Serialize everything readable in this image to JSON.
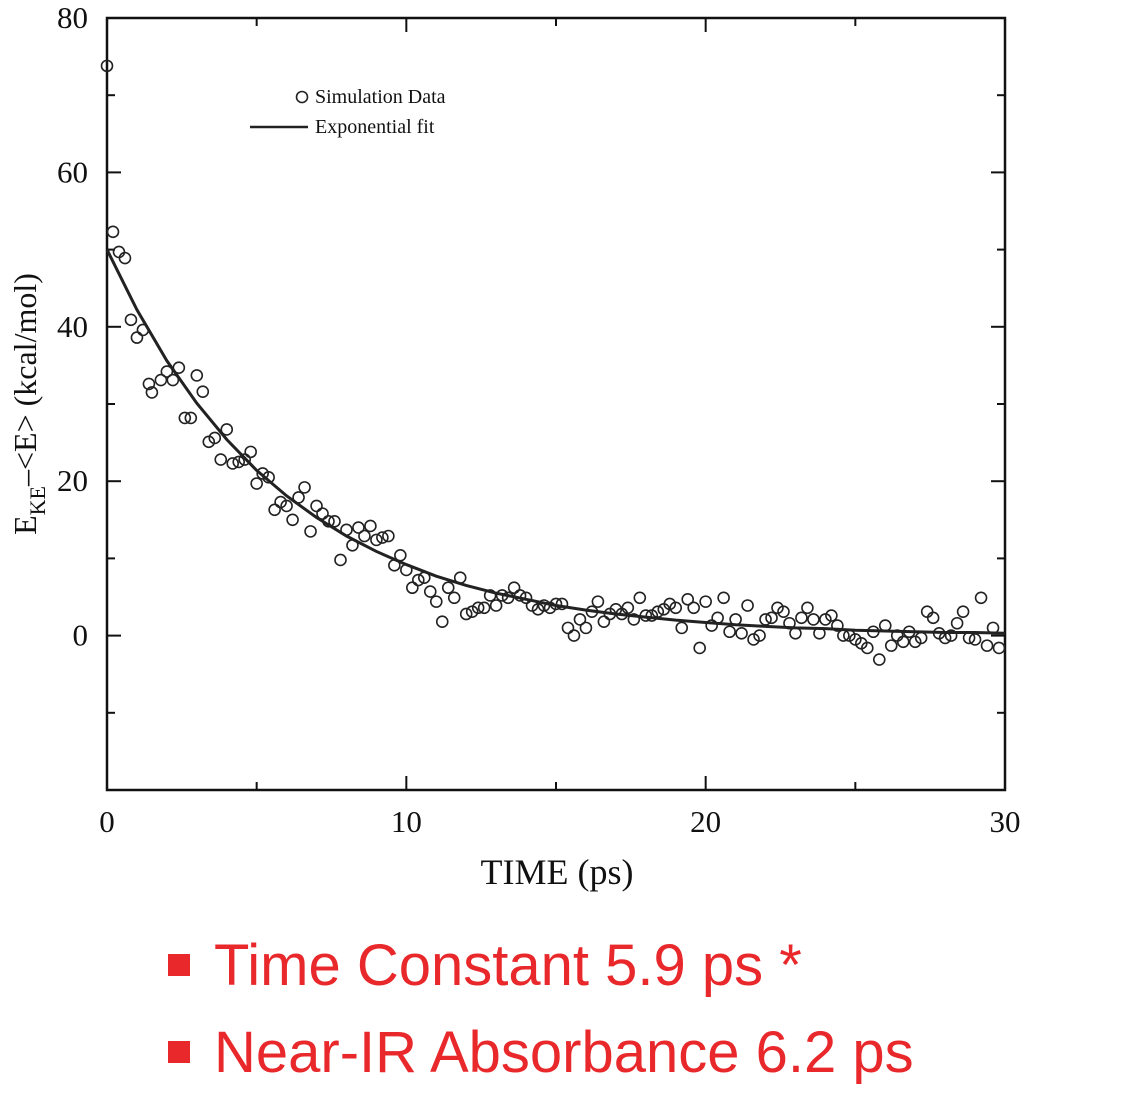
{
  "chart_data": {
    "type": "scatter",
    "xlabel": "TIME (ps)",
    "ylabel_parts": [
      "E",
      "KE",
      "–<E> (kcal/mol)"
    ],
    "xlim": [
      0,
      30
    ],
    "xticks": [
      0,
      10,
      20,
      30
    ],
    "xminor": [
      5,
      15,
      25
    ],
    "ylim": [
      -20,
      80
    ],
    "yticks": [
      0,
      20,
      40,
      60,
      80
    ],
    "yminor": [
      -10,
      10,
      30,
      50,
      70
    ],
    "legend": "upper left",
    "series": [
      {
        "name": "Simulation Data",
        "type": "scatter",
        "color": "#222222",
        "x": [
          0,
          0.2,
          0.4,
          0.6,
          0.8,
          1.0,
          1.2,
          1.4,
          1.5,
          1.8,
          2.0,
          2.2,
          2.4,
          2.6,
          2.8,
          3.0,
          3.2,
          3.4,
          3.6,
          3.8,
          4.0,
          4.2,
          4.4,
          4.6,
          4.8,
          5.0,
          5.2,
          5.4,
          5.6,
          5.8,
          6.0,
          6.2,
          6.4,
          6.6,
          6.8,
          7.0,
          7.2,
          7.4,
          7.6,
          7.8,
          8.0,
          8.2,
          8.4,
          8.6,
          8.8,
          9.0,
          9.2,
          9.4,
          9.6,
          9.8,
          10.0,
          10.2,
          10.4,
          10.6,
          10.8,
          11.0,
          11.2,
          11.4,
          11.6,
          11.8,
          12.0,
          12.2,
          12.4,
          12.6,
          12.8,
          13.0,
          13.2,
          13.4,
          13.6,
          13.8,
          14.0,
          14.2,
          14.4,
          14.6,
          14.8,
          15.0,
          15.2,
          15.4,
          15.6,
          15.8,
          16.0,
          16.2,
          16.4,
          16.6,
          16.8,
          17.0,
          17.2,
          17.4,
          17.6,
          17.8,
          18.0,
          18.2,
          18.4,
          18.6,
          18.8,
          19.0,
          19.2,
          19.4,
          19.6,
          19.8,
          20.0,
          20.2,
          20.4,
          20.6,
          20.8,
          21.0,
          21.2,
          21.4,
          21.6,
          21.8,
          22.0,
          22.2,
          22.4,
          22.6,
          22.8,
          23.0,
          23.2,
          23.4,
          23.6,
          23.8,
          24.0,
          24.2,
          24.4,
          24.6,
          24.8,
          25.0,
          25.2,
          25.4,
          25.6,
          25.8,
          26.0,
          26.2,
          26.4,
          26.6,
          26.8,
          27.0,
          27.2,
          27.4,
          27.6,
          27.8,
          28.0,
          28.2,
          28.4,
          28.6,
          28.8,
          29.0,
          29.2,
          29.4,
          29.6,
          29.8
        ],
        "values": [
          73.8,
          52.3,
          49.7,
          48.9,
          40.9,
          38.6,
          39.6,
          32.6,
          31.5,
          33.1,
          34.2,
          33.1,
          34.7,
          28.2,
          28.2,
          33.7,
          31.6,
          25.1,
          25.6,
          22.8,
          26.7,
          22.3,
          22.5,
          22.8,
          23.8,
          19.7,
          21.0,
          20.5,
          16.3,
          17.3,
          16.8,
          15.0,
          17.9,
          19.2,
          13.5,
          16.8,
          15.8,
          14.8,
          14.8,
          9.8,
          13.7,
          11.7,
          14.0,
          12.9,
          14.2,
          12.4,
          12.7,
          12.9,
          9.1,
          10.4,
          8.5,
          6.2,
          7.2,
          7.5,
          5.7,
          4.4,
          1.8,
          6.2,
          4.9,
          7.5,
          2.8,
          3.1,
          3.6,
          3.6,
          5.2,
          3.9,
          5.2,
          4.9,
          6.2,
          5.2,
          4.9,
          3.9,
          3.4,
          3.9,
          3.6,
          4.1,
          4.1,
          1.0,
          0.0,
          2.1,
          1.0,
          3.1,
          4.4,
          1.8,
          2.8,
          3.4,
          2.8,
          3.6,
          2.1,
          4.9,
          2.6,
          2.6,
          3.1,
          3.4,
          4.1,
          3.6,
          1.0,
          4.7,
          3.6,
          -1.6,
          4.4,
          1.3,
          2.3,
          4.9,
          0.5,
          2.1,
          0.3,
          3.9,
          -0.5,
          0.0,
          2.1,
          2.3,
          3.6,
          3.1,
          1.6,
          0.3,
          2.3,
          3.6,
          2.1,
          0.3,
          2.1,
          2.6,
          1.3,
          0.0,
          0.0,
          -0.5,
          -1.0,
          -1.6,
          0.5,
          -3.1,
          1.3,
          -1.3,
          0.0,
          -0.8,
          0.5,
          -0.8,
          -0.3,
          3.1,
          2.3,
          0.3,
          -0.3,
          0.0,
          1.6,
          3.1,
          -0.3,
          -0.5,
          4.9,
          -1.3,
          1.0,
          -1.6
        ]
      },
      {
        "name": "Exponential fit",
        "type": "line",
        "color": "#222222",
        "x": [
          0,
          1,
          2,
          3,
          4,
          5,
          6,
          7,
          8,
          9,
          10,
          11,
          12,
          13,
          14,
          15,
          16,
          17,
          18,
          19,
          20,
          21,
          22,
          23,
          24,
          25,
          26,
          27,
          28,
          29,
          30
        ],
        "values": [
          50.0,
          42.2,
          35.6,
          30.1,
          25.4,
          21.4,
          18.1,
          15.3,
          12.9,
          10.9,
          9.2,
          7.7,
          6.5,
          5.5,
          4.7,
          3.9,
          3.3,
          2.8,
          2.4,
          2.0,
          1.7,
          1.4,
          1.2,
          1.0,
          0.9,
          0.7,
          0.6,
          0.5,
          0.4,
          0.4,
          0.3
        ]
      }
    ]
  },
  "notes": [
    "Time Constant 5.9 ps *",
    "Near-IR Absorbance 6.2 ps"
  ]
}
